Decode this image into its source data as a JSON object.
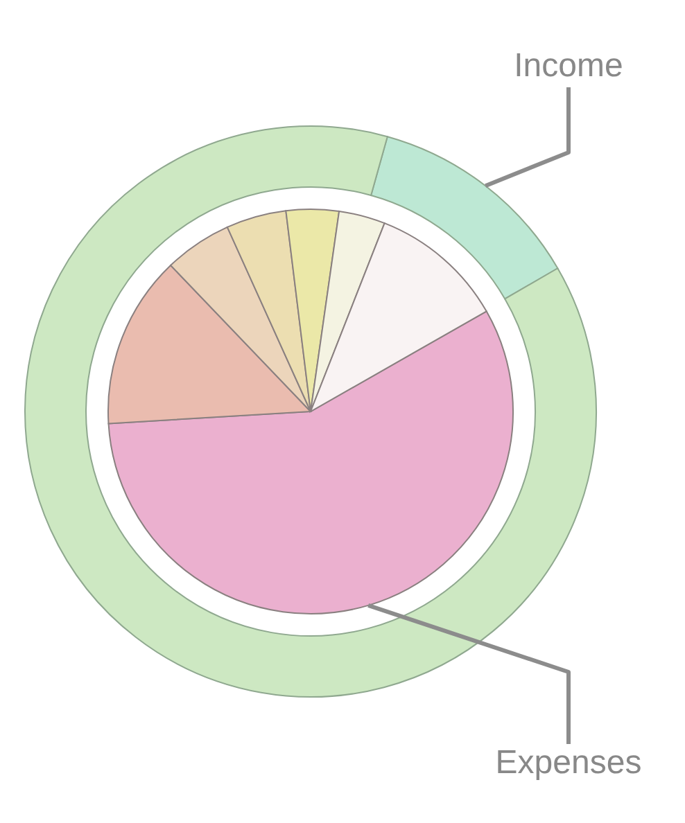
{
  "chart_data": [
    {
      "type": "donut",
      "categories": [
        "Income",
        null
      ],
      "values": [
        12.3,
        87.7
      ],
      "colors": [
        "#bde8d4",
        "#cde8c2"
      ]
    },
    {
      "type": "pie",
      "categories": [
        "Expenses",
        null,
        null,
        null,
        null,
        null,
        null
      ],
      "values": [
        57.3,
        13.8,
        5.4,
        4.8,
        4.2,
        3.7,
        10.8
      ],
      "colors": [
        "#ebb0cf",
        "#eabcaf",
        "#ecd5bb",
        "#ecdeb1",
        "#ebe8a8",
        "#f4f3e2",
        "#f9f3f3"
      ]
    }
  ]
}
